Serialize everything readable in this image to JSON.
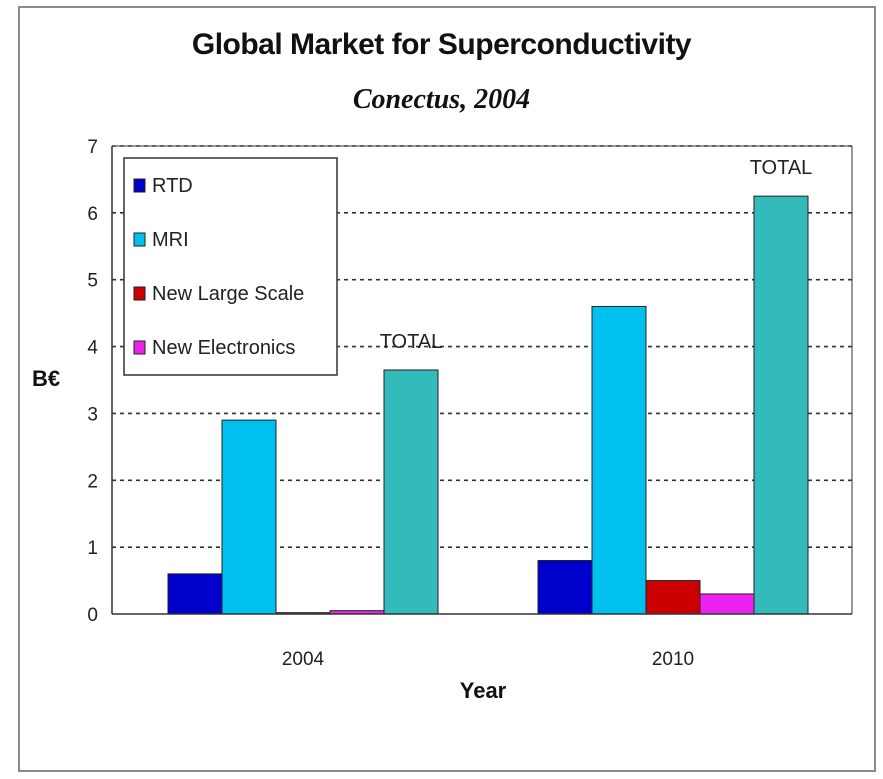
{
  "chart_data": {
    "type": "bar",
    "title": "Global Market for Superconductivity",
    "subtitle": "Conectus,  2004",
    "xlabel": "Year",
    "ylabel": "B€",
    "categories": [
      "2004",
      "2010"
    ],
    "ylim": [
      0,
      7
    ],
    "yticks": [
      0,
      1,
      2,
      3,
      4,
      5,
      6,
      7
    ],
    "grid": "horizontal dotted",
    "legend_position": "top-left",
    "series": [
      {
        "name": "RTD",
        "color": "#0000cc",
        "values": [
          0.6,
          0.8
        ]
      },
      {
        "name": "MRI",
        "color": "#00c0f0",
        "values": [
          2.9,
          4.6
        ]
      },
      {
        "name": "New Large Scale",
        "color": "#cc0000",
        "values": [
          0.02,
          0.5
        ]
      },
      {
        "name": "New Electronics",
        "color": "#ee22ee",
        "values": [
          0.05,
          0.3
        ]
      }
    ],
    "totals": {
      "label": "TOTAL",
      "color": "#33bbbb",
      "values": [
        3.65,
        6.25
      ]
    }
  }
}
